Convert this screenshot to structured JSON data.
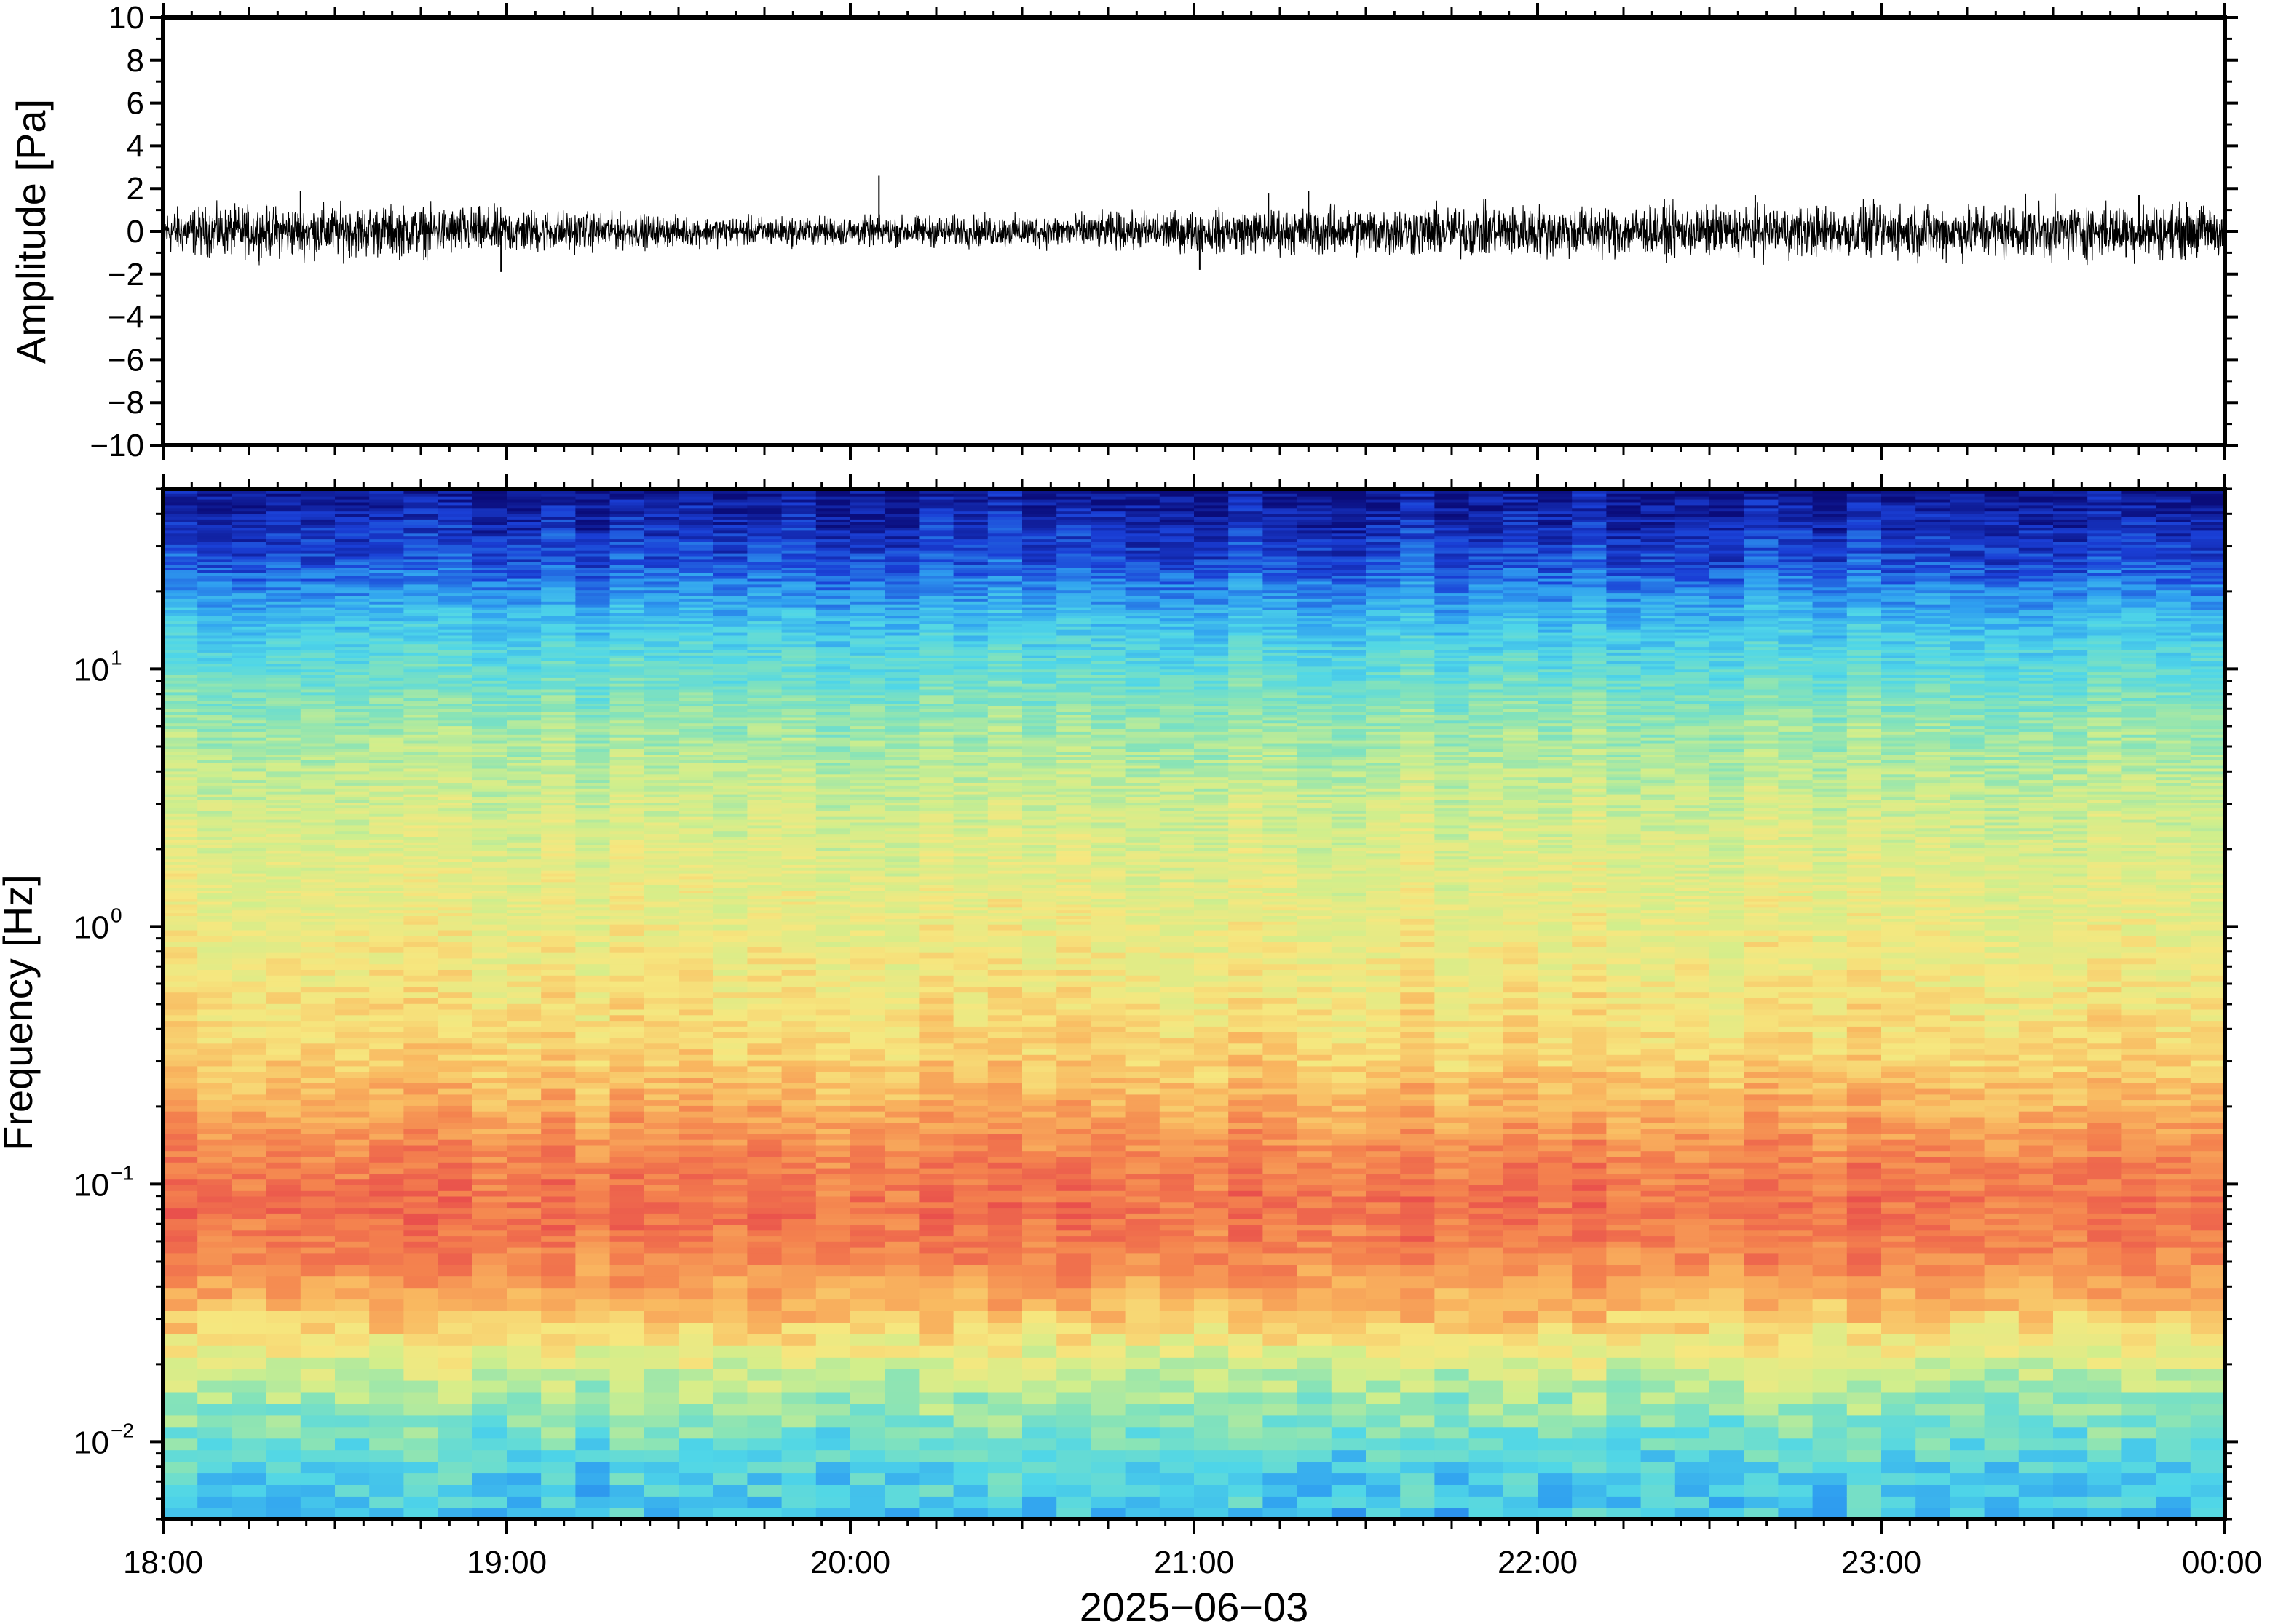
{
  "chart_data": [
    {
      "type": "line",
      "ylabel": "Amplitude [Pa]",
      "ylim": [
        -10,
        10
      ],
      "yticks": [
        -10,
        -8,
        -6,
        -4,
        -2,
        0,
        2,
        4,
        6,
        8,
        10
      ],
      "ytick_labels": [
        "−10",
        "−8",
        "−6",
        "−4",
        "−2",
        "0",
        "2",
        "4",
        "6",
        "8",
        "10"
      ],
      "xlim": [
        "2025-06-03 18:00",
        "2025-06-04 00:00"
      ],
      "series": [
        {
          "values_description_free": true,
          "noise_envelope": [
            {
              "time": "18:00",
              "amp": 0.8
            },
            {
              "time": "18:30",
              "amp": 0.9
            },
            {
              "time": "19:00",
              "amp": 0.8
            },
            {
              "time": "19:30",
              "amp": 0.5
            },
            {
              "time": "20:00",
              "amp": 0.5
            },
            {
              "time": "20:30",
              "amp": 0.55
            },
            {
              "time": "21:00",
              "amp": 0.7
            },
            {
              "time": "21:30",
              "amp": 0.85
            },
            {
              "time": "22:00",
              "amp": 0.9
            },
            {
              "time": "22:30",
              "amp": 0.85
            },
            {
              "time": "23:00",
              "amp": 0.9
            },
            {
              "time": "23:30",
              "amp": 0.95
            },
            {
              "time": "00:00",
              "amp": 0.9
            }
          ],
          "spikes": [
            {
              "time": "18:24",
              "value": 1.9
            },
            {
              "time": "18:59",
              "value": -1.9
            },
            {
              "time": "20:05",
              "value": 2.6
            },
            {
              "time": "21:01",
              "value": -1.8
            },
            {
              "time": "21:13",
              "value": 1.8
            },
            {
              "time": "21:20",
              "value": 1.9
            },
            {
              "time": "22:38",
              "value": 1.7
            },
            {
              "time": "23:45",
              "value": 1.7
            }
          ]
        }
      ],
      "grid": false
    },
    {
      "type": "heatmap",
      "ylabel": "Frequency [Hz]",
      "yscale": "log",
      "ylim": [
        0.005,
        50
      ],
      "yticks": [
        {
          "base": "10",
          "exp": "−2"
        },
        {
          "base": "10",
          "exp": "−1"
        },
        {
          "base": "10",
          "exp": "0"
        },
        {
          "base": "10",
          "exp": "1"
        }
      ],
      "xlabel": "2025−06−03",
      "xticks": [
        "18:00",
        "19:00",
        "20:00",
        "21:00",
        "22:00",
        "23:00",
        "00:00"
      ],
      "colormap": "rainbow-jet (dark blue high f, red near 0.1 Hz, cyan below 0.02 Hz)",
      "colors": [
        "#0a0c7a",
        "#1a3fd6",
        "#2f9ff0",
        "#4fd6e8",
        "#86e3b8",
        "#d0ee8c",
        "#f6e77f",
        "#f9b860",
        "#f4824e",
        "#e9504c"
      ],
      "grid": false
    }
  ]
}
